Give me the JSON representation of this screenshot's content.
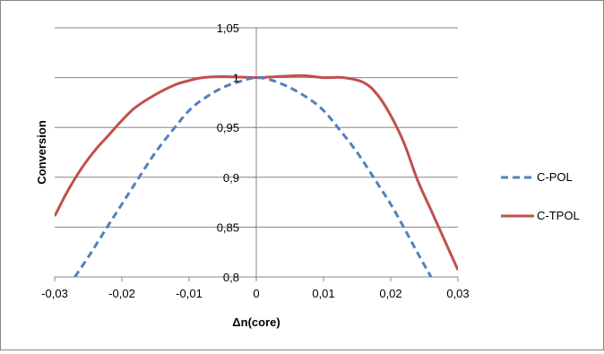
{
  "chart_data": {
    "type": "line",
    "title": "",
    "xlabel": "Δn(core)",
    "ylabel": "Conversion",
    "xlim": [
      -0.03,
      0.03
    ],
    "ylim": [
      0.8,
      1.05
    ],
    "x_ticks": [
      -0.03,
      -0.02,
      -0.01,
      0,
      0.01,
      0.02,
      0.03
    ],
    "x_tick_labels": [
      "-0,03",
      "-0,02",
      "-0,01",
      "0",
      "0,01",
      "0,02",
      "0,03"
    ],
    "y_ticks": [
      0.8,
      0.85,
      0.9,
      0.95,
      1,
      1.05
    ],
    "y_tick_labels": [
      "0,8",
      "0,85",
      "0,9",
      "0,95",
      "1",
      "1,05"
    ],
    "grid": "horizontal",
    "legend": "right",
    "series": [
      {
        "name": "C-POL",
        "style": "dashed",
        "color": "#4F81BD",
        "points": [
          [
            -0.027,
            0.8
          ],
          [
            -0.025,
            0.82
          ],
          [
            -0.022,
            0.852
          ],
          [
            -0.02,
            0.873
          ],
          [
            -0.018,
            0.894
          ],
          [
            -0.015,
            0.925
          ],
          [
            -0.012,
            0.951
          ],
          [
            -0.01,
            0.967
          ],
          [
            -0.008,
            0.978
          ],
          [
            -0.005,
            0.99
          ],
          [
            -0.002,
            0.997
          ],
          [
            0,
            1.0
          ],
          [
            0.002,
            0.998
          ],
          [
            0.005,
            0.99
          ],
          [
            0.008,
            0.978
          ],
          [
            0.01,
            0.967
          ],
          [
            0.012,
            0.951
          ],
          [
            0.015,
            0.925
          ],
          [
            0.018,
            0.894
          ],
          [
            0.02,
            0.873
          ],
          [
            0.022,
            0.849
          ],
          [
            0.024,
            0.824
          ],
          [
            0.026,
            0.8
          ]
        ]
      },
      {
        "name": "C-TPOL",
        "style": "solid",
        "color": "#C0504D",
        "points": [
          [
            -0.03,
            0.861
          ],
          [
            -0.028,
            0.887
          ],
          [
            -0.026,
            0.909
          ],
          [
            -0.024,
            0.927
          ],
          [
            -0.022,
            0.942
          ],
          [
            -0.02,
            0.957
          ],
          [
            -0.018,
            0.97
          ],
          [
            -0.015,
            0.983
          ],
          [
            -0.012,
            0.993
          ],
          [
            -0.01,
            0.997
          ],
          [
            -0.008,
            1.0
          ],
          [
            -0.005,
            1.001
          ],
          [
            0,
            1.0
          ],
          [
            0.003,
            1.001
          ],
          [
            0.007,
            1.002
          ],
          [
            0.01,
            1.0
          ],
          [
            0.013,
            1.0
          ],
          [
            0.016,
            0.995
          ],
          [
            0.018,
            0.983
          ],
          [
            0.02,
            0.962
          ],
          [
            0.022,
            0.934
          ],
          [
            0.024,
            0.897
          ],
          [
            0.026,
            0.867
          ],
          [
            0.028,
            0.837
          ],
          [
            0.03,
            0.807
          ]
        ]
      }
    ]
  }
}
